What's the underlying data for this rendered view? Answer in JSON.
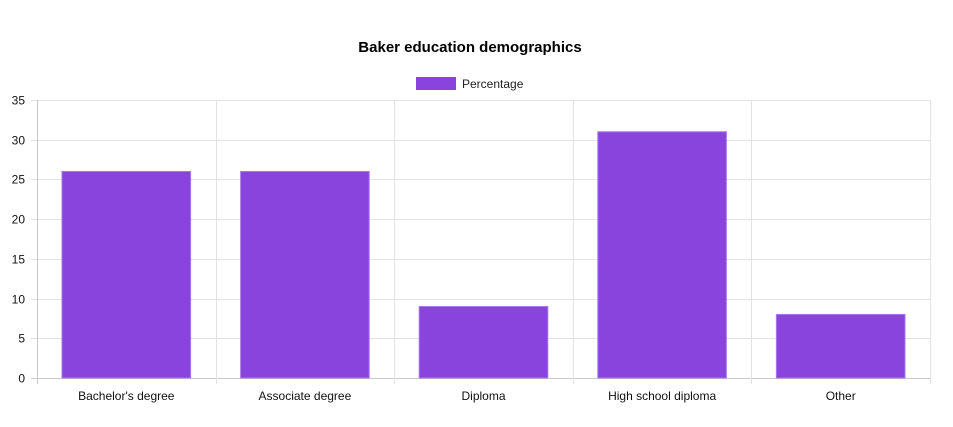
{
  "chart_data": {
    "type": "bar",
    "title": "Baker education demographics",
    "categories": [
      "Bachelor's degree",
      "Associate degree",
      "Diploma",
      "High school diploma",
      "Other"
    ],
    "series": [
      {
        "name": "Percentage",
        "values": [
          26,
          26,
          9,
          31,
          8
        ]
      }
    ],
    "ylim": [
      0,
      35
    ],
    "yticks": [
      0,
      5,
      10,
      15,
      20,
      25,
      30,
      35
    ],
    "grid": true,
    "legend": "top-center",
    "colors": {
      "bar": "#8844dd",
      "bar_border": "#a777e8",
      "grid": "#e2e2e2",
      "axis": "#c9c9c9"
    }
  }
}
